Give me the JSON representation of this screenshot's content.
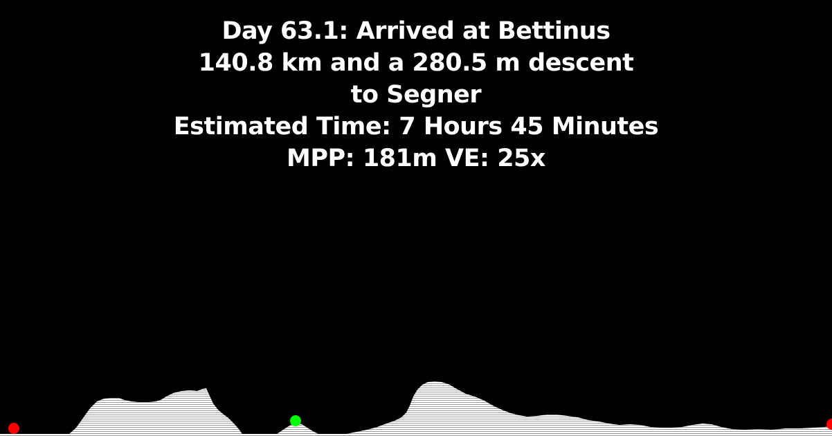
{
  "header": {
    "line1": "Day 63.1: Arrived at Bettinus",
    "line2": "140.8 km and a 280.5 m descent",
    "line3": "to Segner",
    "line4": "Estimated Time: 7 Hours 45 Minutes",
    "line5": "MPP: 181m VE: 25x"
  },
  "colors": {
    "background": "#000000",
    "text": "#ffffff",
    "terrain": "#e8e8e8",
    "start_marker": "#ff0000",
    "current_marker": "#00ff00",
    "end_marker": "#ff0000"
  },
  "markers": {
    "start": {
      "type": "start-point",
      "color": "#ff0000"
    },
    "current": {
      "type": "current-position",
      "color": "#00ff00"
    },
    "end": {
      "type": "end-point",
      "color": "#ff0000"
    }
  }
}
